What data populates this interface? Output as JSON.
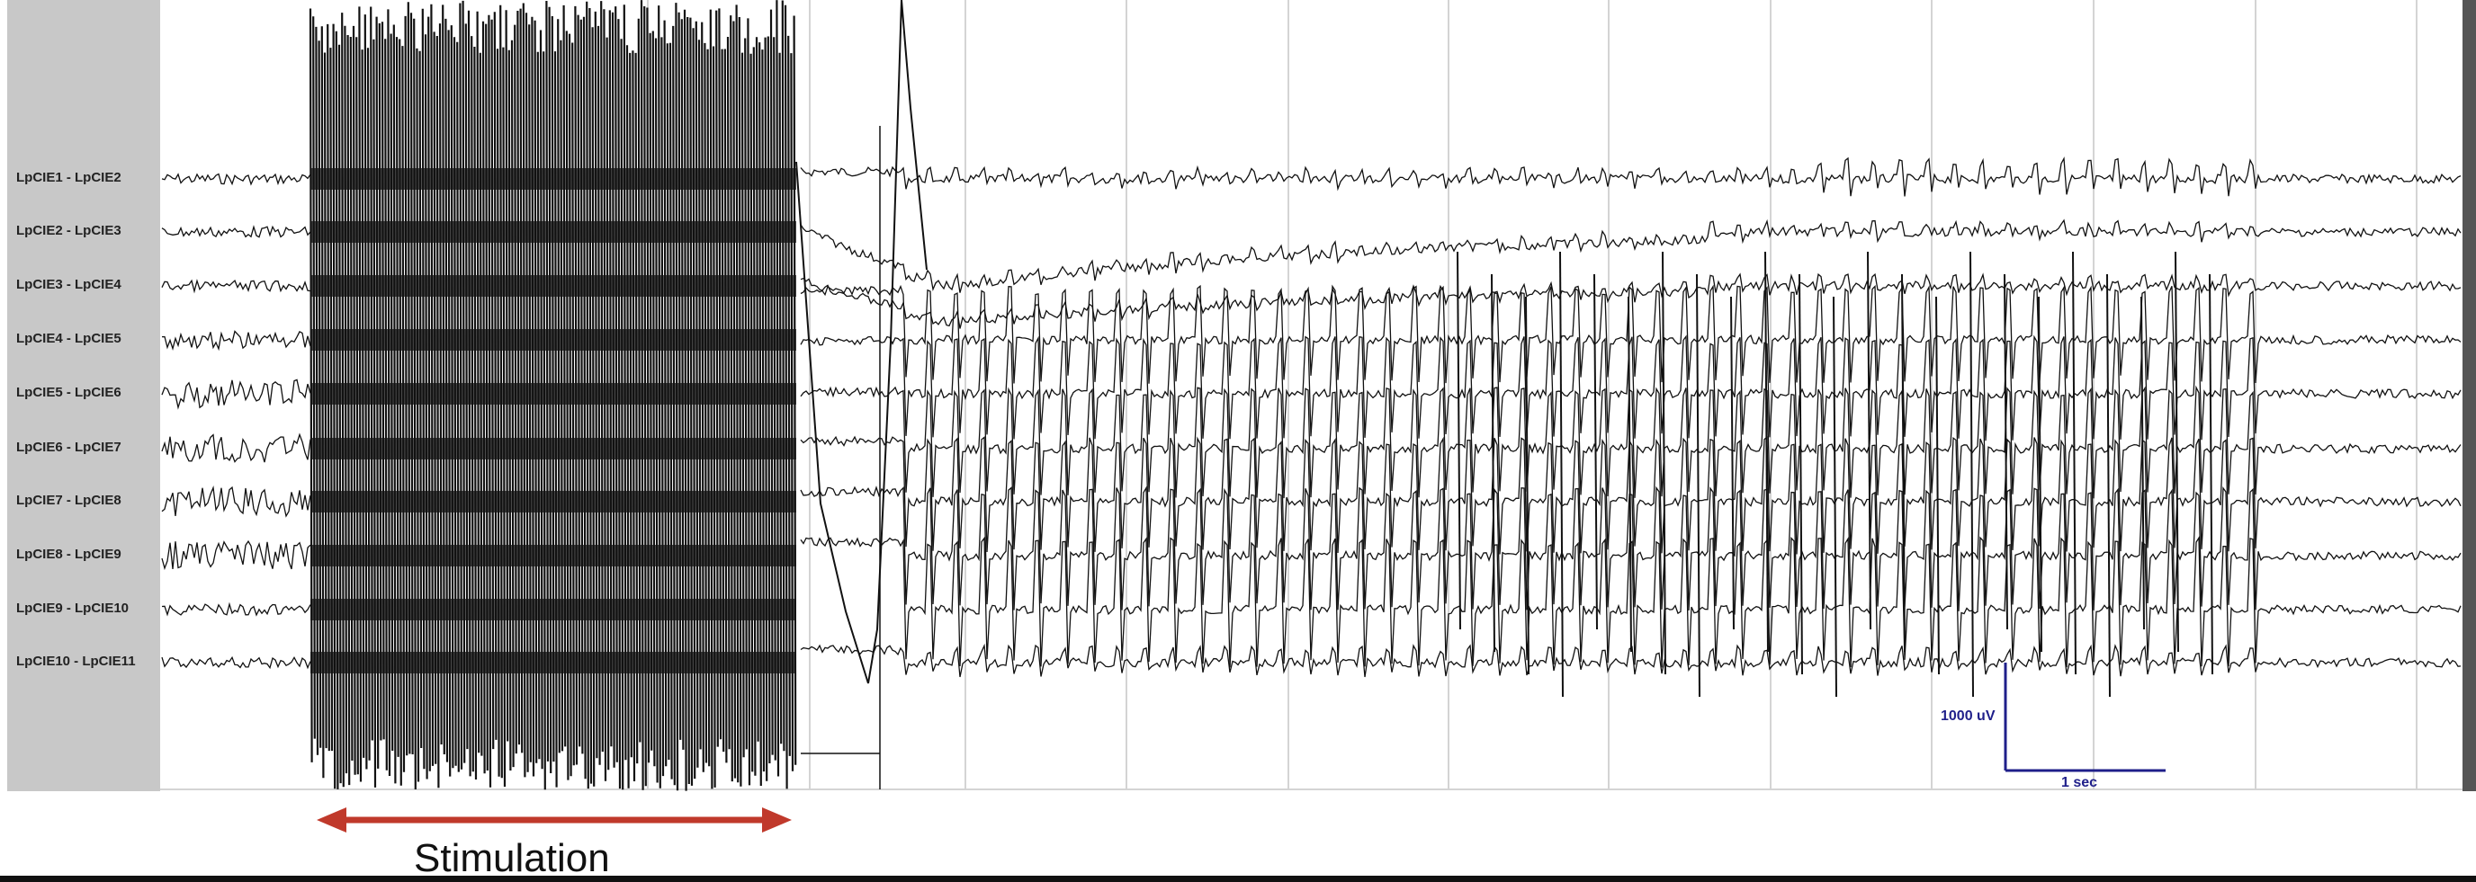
{
  "channels": [
    "LpCIE1 - LpCIE2",
    "LpCIE2 - LpCIE3",
    "LpCIE3 - LpCIE4",
    "LpCIE4 - LpCIE5",
    "LpCIE5 - LpCIE6",
    "LpCIE6 - LpCIE7",
    "LpCIE7 - LpCIE8",
    "LpCIE8 - LpCIE9",
    "LpCIE9 - LpCIE10",
    "LpCIE10 - LpCIE11"
  ],
  "annotation": {
    "stimulation_label": "Stimulation",
    "arrow_color": "#c0392b"
  },
  "scale_bar": {
    "amplitude_label": "1000 uV",
    "time_label": "1 sec",
    "color": "#1f1f8a"
  },
  "colors": {
    "trace": "#111111",
    "grid": "#d4d4d4",
    "sidebar": "#c8c8c8"
  },
  "chart_data": {
    "type": "line",
    "title": "",
    "xlabel": "",
    "ylabel": "",
    "series": [
      {
        "name": "LpCIE1 - LpCIE2"
      },
      {
        "name": "LpCIE2 - LpCIE3"
      },
      {
        "name": "LpCIE3 - LpCIE4"
      },
      {
        "name": "LpCIE4 - LpCIE5"
      },
      {
        "name": "LpCIE5 - LpCIE6"
      },
      {
        "name": "LpCIE6 - LpCIE7"
      },
      {
        "name": "LpCIE7 - LpCIE8"
      },
      {
        "name": "LpCIE8 - LpCIE9"
      },
      {
        "name": "LpCIE9 - LpCIE10"
      },
      {
        "name": "LpCIE10 - LpCIE11"
      }
    ],
    "scale": {
      "amplitude_uV": 1000,
      "time_sec": 1
    },
    "grid": true,
    "legend": "left"
  }
}
